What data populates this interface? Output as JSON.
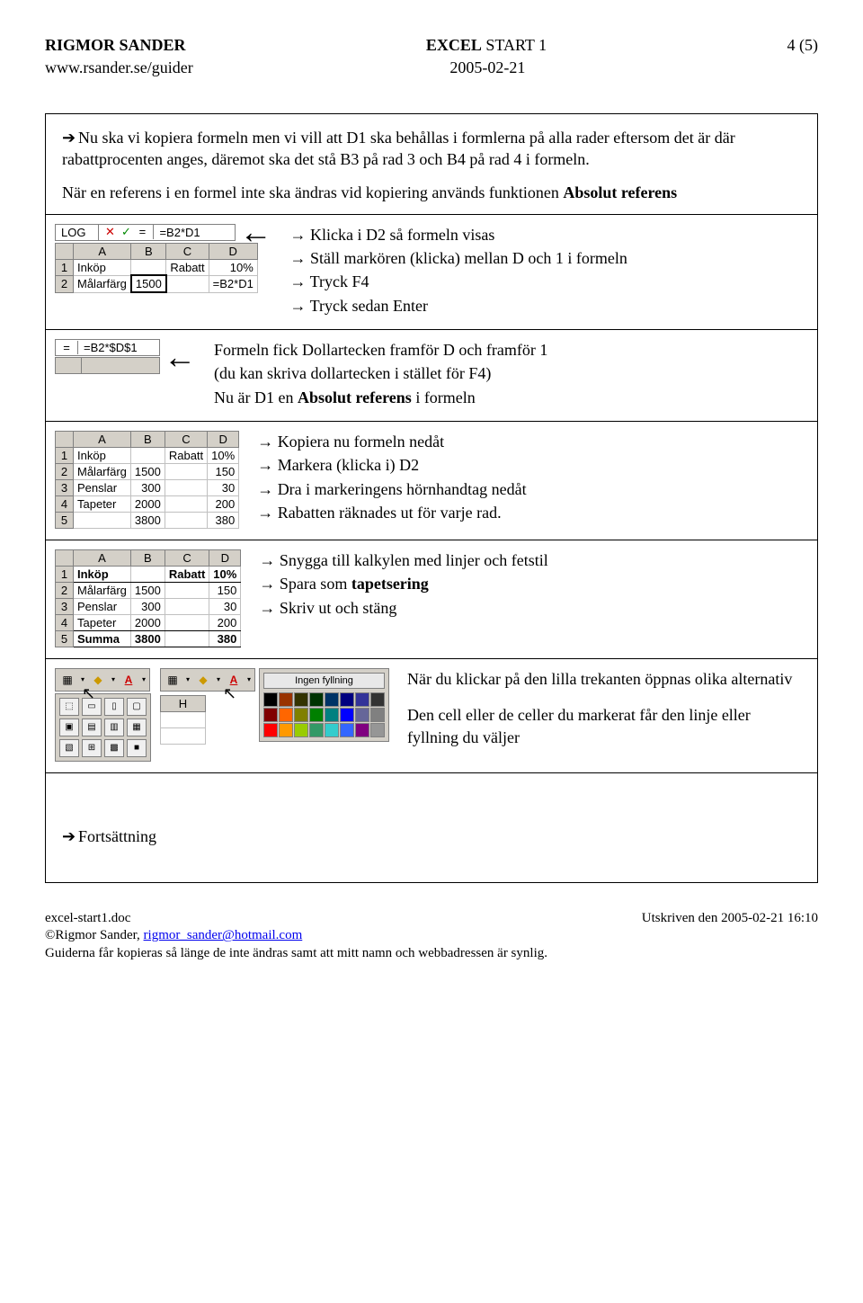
{
  "header": {
    "author": "RIGMOR SANDER",
    "title_bold": "EXCEL",
    "title_rest": "START 1",
    "page": "4 (5)",
    "url": "www.rsander.se/guider",
    "date": "2005-02-21"
  },
  "intro": {
    "text": "Nu ska vi kopiera formeln men vi vill att D1 ska behållas i formlerna på alla rader eftersom det är där rabattprocenten anges, däremot ska det stå B3 på rad 3 och B4 på rad 4 i formeln.",
    "line2": "När en referens i en formel inte ska ändras vid kopiering används funktionen ",
    "line2_bold": "Absolut referens"
  },
  "sec1": {
    "formula_name": "LOG",
    "formula_val": "=B2*D1",
    "cols": [
      "A",
      "B",
      "C",
      "D"
    ],
    "r1": [
      "Inköp",
      "",
      "Rabatt",
      "10%"
    ],
    "r2": [
      "Målarfärg",
      "1500",
      "",
      "=B2*D1"
    ],
    "i1": "→ Klicka i D2 så formeln visas",
    "i2": "→ Ställ markören (klicka) mellan D och 1 i formeln",
    "i3": "→ Tryck F4",
    "i4": "→ Tryck sedan Enter"
  },
  "sec2": {
    "eq": "=",
    "formula": "=B2*$D$1",
    "t1": "Formeln fick Dollartecken framför D och framför 1",
    "t2": "(du kan skriva dollartecken i stället för F4)",
    "t3a": "Nu är D1 en ",
    "t3b": "Absolut referens",
    "t3c": " i formeln"
  },
  "sec3": {
    "cols": [
      "A",
      "B",
      "C",
      "D"
    ],
    "r1": [
      "Inköp",
      "",
      "Rabatt",
      "10%"
    ],
    "r2": [
      "Målarfärg",
      "1500",
      "",
      "150"
    ],
    "r3": [
      "Penslar",
      "300",
      "",
      "30"
    ],
    "r4": [
      "Tapeter",
      "2000",
      "",
      "200"
    ],
    "r5": [
      "",
      "3800",
      "",
      "380"
    ],
    "i1": "→ Kopiera nu formeln nedåt",
    "i2": "→ Markera (klicka i) D2",
    "i3": "→ Dra i markeringens hörnhandtag nedåt",
    "i4": "→ Rabatten räknades ut för varje rad."
  },
  "sec4": {
    "cols": [
      "A",
      "B",
      "C",
      "D"
    ],
    "r1": [
      "Inköp",
      "",
      "Rabatt",
      "10%"
    ],
    "r2": [
      "Målarfärg",
      "1500",
      "",
      "150"
    ],
    "r3": [
      "Penslar",
      "300",
      "",
      "30"
    ],
    "r4": [
      "Tapeter",
      "2000",
      "",
      "200"
    ],
    "r5": [
      "Summa",
      "3800",
      "",
      "380"
    ],
    "i1": "→ Snygga till kalkylen med linjer och fetstil",
    "i2a": "→ Spara som ",
    "i2b": "tapetsering",
    "i3": "→ Skriv ut och stäng"
  },
  "sec5": {
    "h_label": "H",
    "nofill": "Ingen fyllning",
    "t1": "När du klickar på den lilla trekanten öppnas olika alternativ",
    "t2": "Den cell eller de celler du markerat får den linje eller fyllning du väljer",
    "colors_row1": [
      "#000000",
      "#993300",
      "#333300",
      "#003300",
      "#003366",
      "#000080",
      "#333399",
      "#333333"
    ],
    "colors_row2": [
      "#800000",
      "#ff6600",
      "#808000",
      "#008000",
      "#008080",
      "#0000ff",
      "#666699",
      "#808080"
    ],
    "colors_row3": [
      "#ff0000",
      "#ff9900",
      "#99cc00",
      "#339966",
      "#33cccc",
      "#3366ff",
      "#800080",
      "#969696"
    ]
  },
  "outro": "Fortsättning",
  "footer": {
    "l1": "excel-start1.doc",
    "l2a": "©Rigmor Sander, ",
    "l2b": "rigmor_sander@hotmail.com",
    "l3": "Guiderna får kopieras så länge de inte ändras samt att mitt namn och webbadressen är synlig.",
    "r1": "Utskriven den 2005-02-21 16:10"
  }
}
